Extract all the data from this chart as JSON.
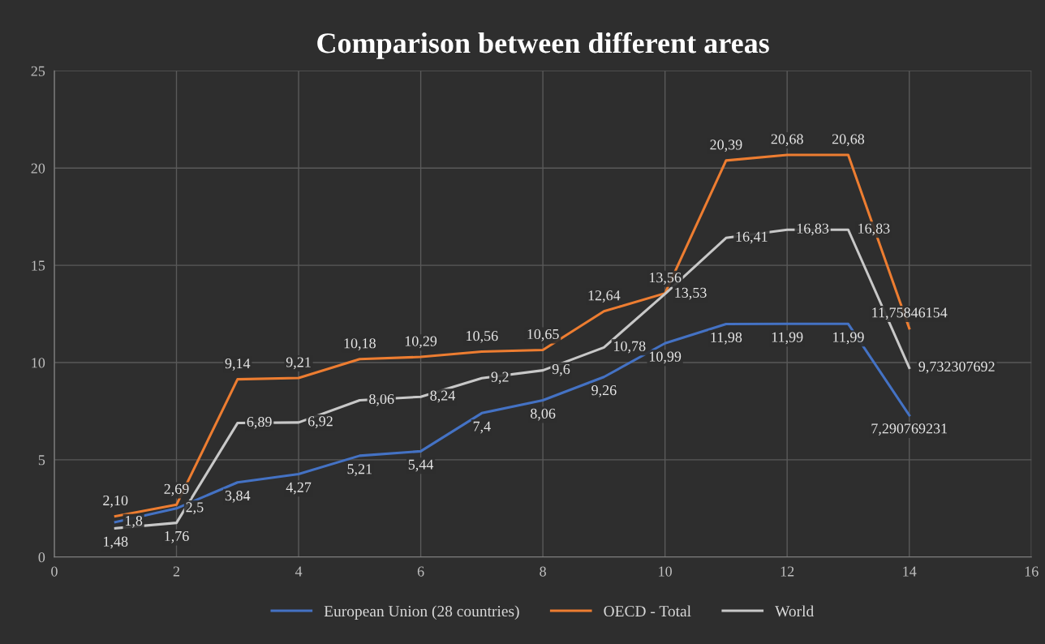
{
  "chart_data": {
    "type": "line",
    "title": "Comparison between different areas",
    "x": [
      1,
      2,
      3,
      4,
      5,
      6,
      7,
      8,
      9,
      10,
      11,
      12,
      13,
      14
    ],
    "series": [
      {
        "name": "European Union (28 countries)",
        "color": "#4472c4",
        "values": [
          1.8,
          2.5,
          3.84,
          4.27,
          5.21,
          5.44,
          7.4,
          8.06,
          9.26,
          10.99,
          11.98,
          11.99,
          11.99,
          7.290769231
        ],
        "value_labels": [
          "1,8",
          "2,5",
          "3,84",
          "4,27",
          "5,21",
          "5,44",
          "7,4",
          "8,06",
          "9,26",
          "10,99",
          "11,98",
          "11,99",
          "11,99",
          "7,290769231"
        ]
      },
      {
        "name": "OECD - Total",
        "color": "#ed7d31",
        "values": [
          2.1,
          2.69,
          9.14,
          9.21,
          10.18,
          10.29,
          10.56,
          10.65,
          12.64,
          13.56,
          20.39,
          20.68,
          20.68,
          11.75846154
        ],
        "value_labels": [
          "2,10",
          "2,69",
          "9,14",
          "9,21",
          "10,18",
          "10,29",
          "10,56",
          "10,65",
          "12,64",
          "13,56",
          "20,39",
          "20,68",
          "20,68",
          "11,75846154"
        ]
      },
      {
        "name": "World",
        "color": "#c8c8c8",
        "values": [
          1.48,
          1.76,
          6.89,
          6.92,
          8.06,
          8.24,
          9.2,
          9.6,
          10.78,
          13.53,
          16.41,
          16.83,
          16.83,
          9.732307692
        ],
        "value_labels": [
          "1,48",
          "1,76",
          "6,89",
          "6,92",
          "8,06",
          "8,24",
          "9,2",
          "9,6",
          "10,78",
          "13,53",
          "16,41",
          "16,83",
          "16,83",
          "9,732307692"
        ]
      }
    ],
    "xlim": [
      0,
      16
    ],
    "xticks": [
      0,
      2,
      4,
      6,
      8,
      10,
      12,
      14,
      16
    ],
    "ylim": [
      0,
      25
    ],
    "yticks": [
      0,
      5,
      10,
      15,
      20,
      25
    ],
    "grid": true,
    "legend": "bottom",
    "marker": "none",
    "line_style": "solid"
  }
}
